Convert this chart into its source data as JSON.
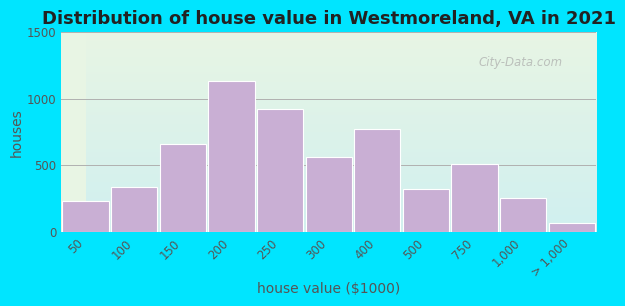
{
  "title": "Distribution of house value in Westmoreland, VA in 2021",
  "xlabel": "house value ($1000)",
  "ylabel": "houses",
  "bar_labels": [
    "50",
    "100",
    "150",
    "200",
    "250",
    "300",
    "400",
    "500",
    "750",
    "1,000",
    "> 1,000"
  ],
  "bar_heights": [
    230,
    340,
    660,
    1130,
    920,
    560,
    770,
    320,
    510,
    255,
    70
  ],
  "bar_color": "#c9afd4",
  "bar_edge_color": "#ffffff",
  "ylim": [
    0,
    1500
  ],
  "yticks": [
    0,
    500,
    1000,
    1500
  ],
  "bg_color_outer": "#00e5ff",
  "bg_color_plot_top": "#e8f5e4",
  "bg_color_plot_bottom": "#d0f0f0",
  "watermark": "City-Data.com",
  "title_fontsize": 13,
  "axis_label_fontsize": 10,
  "tick_fontsize": 8.5
}
